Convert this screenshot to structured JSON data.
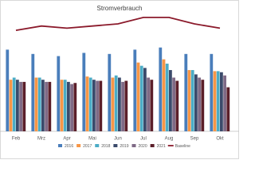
{
  "chart_data": {
    "type": "bar",
    "title": "Stromverbrauch",
    "categories": [
      "Feb",
      "Mrz",
      "Apr",
      "Mai",
      "Jun",
      "Jul",
      "Aug",
      "Sep",
      "Okt"
    ],
    "ylim": [
      0,
      110
    ],
    "series": [
      {
        "name": "2016",
        "color": "#4a7ebb",
        "values": [
          76,
          72,
          70,
          73,
          72,
          76,
          78,
          72,
          72
        ]
      },
      {
        "name": "2017",
        "color": "#f79646",
        "values": [
          48,
          50,
          48,
          51,
          50,
          64,
          67,
          57,
          56
        ]
      },
      {
        "name": "2018",
        "color": "#4bacc6",
        "values": [
          50,
          50,
          48,
          50,
          52,
          61,
          63,
          57,
          56
        ]
      },
      {
        "name": "2019",
        "color": "#3b4a6b",
        "values": [
          48,
          48,
          46,
          48,
          50,
          59,
          57,
          53,
          55
        ]
      },
      {
        "name": "2020",
        "color": "#7f6a86",
        "values": [
          46,
          46,
          44,
          47,
          46,
          50,
          50,
          50,
          52
        ]
      },
      {
        "name": "2021",
        "color": "#5b1f2a",
        "values": [
          46,
          46,
          45,
          47,
          47,
          48,
          47,
          48,
          41
        ]
      },
      {
        "name": "Baseline",
        "type": "line",
        "color": "#8b1a2b",
        "values": [
          94,
          98,
          96,
          98,
          100,
          106,
          106,
          100,
          96
        ]
      }
    ]
  }
}
